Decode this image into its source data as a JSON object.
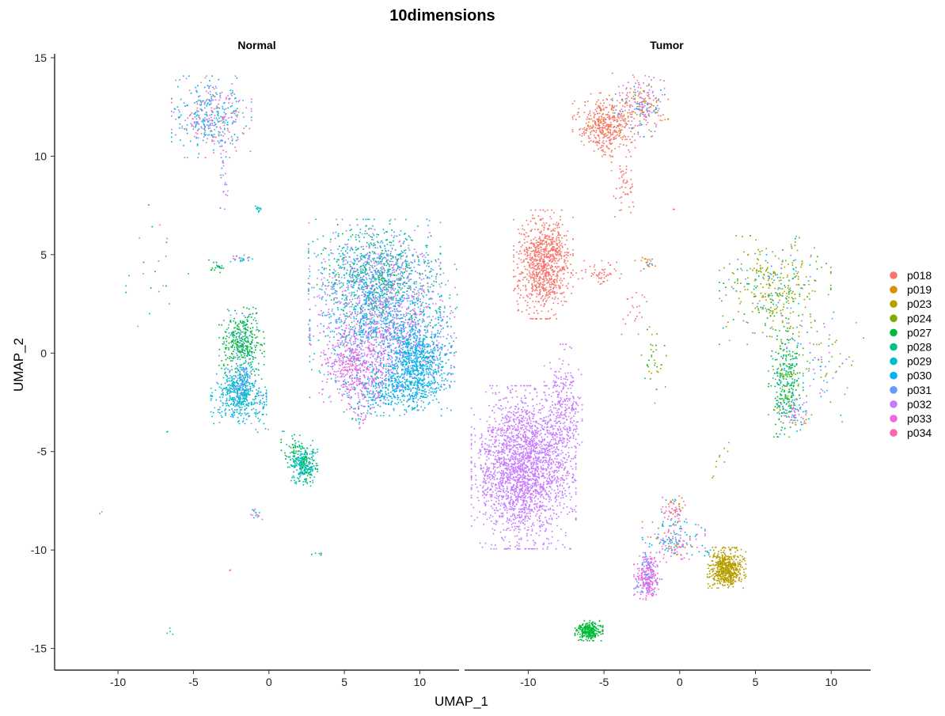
{
  "chart_data": {
    "type": "scatter",
    "title": "10dimensions",
    "xlabel": "UMAP_1",
    "ylabel": "UMAP_2",
    "xlim": [
      -14.2,
      12.6
    ],
    "ylim": [
      -16.1,
      15.2
    ],
    "x_ticks": [
      -10,
      -5,
      0,
      5,
      10
    ],
    "y_ticks": [
      15,
      10,
      5,
      0,
      -5,
      -10,
      -15
    ],
    "grid": false,
    "legend_position": "right",
    "legend": [
      {
        "name": "p018",
        "color": "#F8766D"
      },
      {
        "name": "p019",
        "color": "#DE8C00"
      },
      {
        "name": "p023",
        "color": "#B79F00"
      },
      {
        "name": "p024",
        "color": "#7CAE00"
      },
      {
        "name": "p027",
        "color": "#00BA38"
      },
      {
        "name": "p028",
        "color": "#00C08B"
      },
      {
        "name": "p029",
        "color": "#00BFC4"
      },
      {
        "name": "p030",
        "color": "#00B4F0"
      },
      {
        "name": "p031",
        "color": "#619CFF"
      },
      {
        "name": "p032",
        "color": "#C77CFF"
      },
      {
        "name": "p033",
        "color": "#F564E3"
      },
      {
        "name": "p034",
        "color": "#FF64B0"
      }
    ],
    "panels": [
      {
        "label": "Normal",
        "clusters": [
          {
            "cx": -3.8,
            "cy": 12.0,
            "sx": 1.15,
            "sy": 0.9,
            "n": 420,
            "mix": {
              "p018": 2,
              "p030": 3,
              "p031": 2,
              "p032": 2,
              "p029": 1,
              "p033": 1
            }
          },
          {
            "cx": -3.0,
            "cy": 9.0,
            "sx": 0.15,
            "sy": 0.9,
            "n": 25,
            "mix": {
              "p030": 1,
              "p032": 1,
              "p033": 1
            }
          },
          {
            "cx": -0.6,
            "cy": 7.3,
            "sx": 0.15,
            "sy": 0.1,
            "n": 12,
            "mix": {
              "p029": 1
            }
          },
          {
            "cx": -1.9,
            "cy": 4.8,
            "sx": 0.35,
            "sy": 0.12,
            "n": 25,
            "mix": {
              "p029": 1,
              "p030": 1,
              "p033": 1
            }
          },
          {
            "cx": -3.4,
            "cy": 4.4,
            "sx": 0.25,
            "sy": 0.15,
            "n": 20,
            "mix": {
              "p027": 2,
              "p029": 1
            }
          },
          {
            "cx": -7.4,
            "cy": 4.3,
            "sx": 0.9,
            "sy": 1.4,
            "n": 22,
            "mix": {
              "p027": 1,
              "p029": 1,
              "p033": 1,
              "p034": 1
            }
          },
          {
            "cx": -1.8,
            "cy": 0.6,
            "sx": 0.65,
            "sy": 0.75,
            "n": 380,
            "mix": {
              "p027": 5,
              "p028": 1,
              "p031": 1
            }
          },
          {
            "cx": -1.8,
            "cy": -1.5,
            "sx": 0.35,
            "sy": 0.6,
            "n": 160,
            "mix": {
              "p031": 3,
              "p029": 1
            }
          },
          {
            "cx": -2.0,
            "cy": -2.2,
            "sx": 0.8,
            "sy": 0.6,
            "n": 400,
            "mix": {
              "p029": 5,
              "p030": 1,
              "p031": 1
            }
          },
          {
            "cx": -0.4,
            "cy": -2.8,
            "sx": 0.4,
            "sy": 0.6,
            "n": 30,
            "mix": {
              "p029": 1,
              "p031": 1
            }
          },
          {
            "cx": 1.5,
            "cy": -4.9,
            "sx": 0.3,
            "sy": 0.5,
            "n": 50,
            "mix": {
              "p027": 2,
              "p029": 1
            }
          },
          {
            "cx": 2.3,
            "cy": -5.6,
            "sx": 0.4,
            "sy": 0.5,
            "n": 260,
            "mix": {
              "p027": 3,
              "p029": 3,
              "p030": 2,
              "p028": 1
            }
          },
          {
            "cx": 7.0,
            "cy": 3.8,
            "sx": 1.9,
            "sy": 1.3,
            "n": 1300,
            "mix": {
              "p027": 2,
              "p028": 2,
              "p030": 2,
              "p031": 2,
              "p032": 3,
              "p029": 1
            }
          },
          {
            "cx": 8.0,
            "cy": 1.2,
            "sx": 2.3,
            "sy": 1.5,
            "n": 1500,
            "mix": {
              "p032": 3,
              "p030": 3,
              "p031": 2,
              "p029": 2,
              "p033": 2
            }
          },
          {
            "cx": 6.0,
            "cy": -0.8,
            "sx": 1.2,
            "sy": 0.9,
            "n": 450,
            "mix": {
              "p033": 4,
              "p032": 2,
              "p034": 1
            }
          },
          {
            "cx": 10.0,
            "cy": -0.6,
            "sx": 0.9,
            "sy": 1.0,
            "n": 650,
            "mix": {
              "p030": 5,
              "p029": 1,
              "p031": 1
            }
          },
          {
            "cx": 8.2,
            "cy": -1.8,
            "sx": 1.4,
            "sy": 0.6,
            "n": 300,
            "mix": {
              "p030": 3,
              "p029": 2,
              "p031": 1
            }
          },
          {
            "cx": 6.0,
            "cy": -3.1,
            "sx": 0.3,
            "sy": 0.35,
            "n": 40,
            "mix": {
              "p032": 1,
              "p033": 1,
              "p029": 1
            }
          },
          {
            "cx": -0.9,
            "cy": -8.2,
            "sx": 0.2,
            "sy": 0.15,
            "n": 16,
            "mix": {
              "p033": 2,
              "p029": 1
            }
          },
          {
            "cx": 3.3,
            "cy": -10.2,
            "sx": 0.2,
            "sy": 0.05,
            "n": 6,
            "mix": {
              "p029": 1,
              "p027": 1
            }
          },
          {
            "cx": -6.6,
            "cy": -14.2,
            "sx": 0.2,
            "sy": 0.3,
            "n": 4,
            "mix": {
              "p029": 1
            }
          },
          {
            "cx": -11.1,
            "cy": -8.1,
            "sx": 0.05,
            "sy": 0.05,
            "n": 2,
            "mix": {
              "p031": 1
            }
          },
          {
            "cx": -2.5,
            "cy": -11.0,
            "sx": 0.05,
            "sy": 0.05,
            "n": 2,
            "mix": {
              "p033": 1
            }
          },
          {
            "cx": -6.7,
            "cy": -4.0,
            "sx": 0.05,
            "sy": 0.05,
            "n": 2,
            "mix": {
              "p029": 1
            }
          }
        ]
      },
      {
        "label": "Tumor",
        "clusters": [
          {
            "cx": -5.0,
            "cy": 11.6,
            "sx": 0.9,
            "sy": 0.7,
            "n": 420,
            "mix": {
              "p018": 6,
              "p019": 1
            }
          },
          {
            "cx": -2.6,
            "cy": 12.6,
            "sx": 0.8,
            "sy": 0.7,
            "n": 260,
            "mix": {
              "p032": 3,
              "p019": 2,
              "p033": 1,
              "p030": 1,
              "p018": 1
            }
          },
          {
            "cx": -3.7,
            "cy": 8.7,
            "sx": 0.35,
            "sy": 0.8,
            "n": 55,
            "mix": {
              "p018": 1
            }
          },
          {
            "cx": -9.0,
            "cy": 4.5,
            "sx": 0.85,
            "sy": 1.2,
            "n": 900,
            "mix": {
              "p018": 1
            }
          },
          {
            "cx": -5.3,
            "cy": 4.0,
            "sx": 0.8,
            "sy": 0.3,
            "n": 55,
            "mix": {
              "p018": 1
            }
          },
          {
            "cx": -2.3,
            "cy": 4.6,
            "sx": 0.3,
            "sy": 0.2,
            "n": 22,
            "mix": {
              "p018": 1,
              "p019": 1,
              "p030": 1
            }
          },
          {
            "cx": -3.0,
            "cy": 2.1,
            "sx": 0.4,
            "sy": 0.5,
            "n": 22,
            "mix": {
              "p018": 1,
              "p034": 1
            }
          },
          {
            "cx": -1.6,
            "cy": -0.5,
            "sx": 0.4,
            "sy": 1.0,
            "n": 35,
            "mix": {
              "p023": 1,
              "p024": 1,
              "p027": 1
            }
          },
          {
            "cx": 6.3,
            "cy": 3.2,
            "sx": 1.6,
            "sy": 1.2,
            "n": 380,
            "mix": {
              "p023": 3,
              "p024": 4,
              "p027": 2,
              "p030": 1,
              "p031": 1
            }
          },
          {
            "cx": 7.0,
            "cy": -1.5,
            "sx": 0.5,
            "sy": 1.2,
            "n": 300,
            "mix": {
              "p027": 5,
              "p024": 1,
              "p029": 1,
              "p030": 1
            }
          },
          {
            "cx": 7.6,
            "cy": -3.1,
            "sx": 0.5,
            "sy": 0.35,
            "n": 70,
            "mix": {
              "p030": 2,
              "p031": 2,
              "p033": 1,
              "p034": 1,
              "p019": 1
            }
          },
          {
            "cx": 9.6,
            "cy": -0.5,
            "sx": 1.1,
            "sy": 1.3,
            "n": 80,
            "mix": {
              "p024": 2,
              "p030": 1,
              "p031": 1,
              "p033": 1
            }
          },
          {
            "cx": -10.3,
            "cy": -5.8,
            "sx": 1.5,
            "sy": 1.8,
            "n": 2300,
            "mix": {
              "p032": 1
            }
          },
          {
            "cx": -7.7,
            "cy": -3.0,
            "sx": 0.55,
            "sy": 1.5,
            "n": 300,
            "mix": {
              "p032": 1
            }
          },
          {
            "cx": -12.6,
            "cy": -6.5,
            "sx": 0.3,
            "sy": 0.5,
            "n": 40,
            "mix": {
              "p032": 1
            }
          },
          {
            "cx": -0.5,
            "cy": -8.0,
            "sx": 0.45,
            "sy": 0.4,
            "n": 70,
            "mix": {
              "p034": 3,
              "p019": 2,
              "p030": 1,
              "p033": 1
            }
          },
          {
            "cx": -0.4,
            "cy": -9.6,
            "sx": 0.9,
            "sy": 0.45,
            "n": 170,
            "mix": {
              "p033": 3,
              "p030": 2,
              "p029": 1,
              "p019": 1
            }
          },
          {
            "cx": -2.1,
            "cy": -11.4,
            "sx": 0.4,
            "sy": 0.55,
            "n": 290,
            "mix": {
              "p033": 5,
              "p031": 2
            }
          },
          {
            "cx": 3.1,
            "cy": -10.9,
            "sx": 0.55,
            "sy": 0.45,
            "n": 550,
            "mix": {
              "p023": 1
            }
          },
          {
            "cx": -6.0,
            "cy": -14.1,
            "sx": 0.4,
            "sy": 0.22,
            "n": 260,
            "mix": {
              "p027": 1
            }
          },
          {
            "cx": 2.6,
            "cy": -5.3,
            "sx": 0.4,
            "sy": 0.5,
            "n": 10,
            "mix": {
              "p023": 1,
              "p024": 1
            }
          },
          {
            "cx": 1.9,
            "cy": -10.0,
            "sx": 0.2,
            "sy": 0.2,
            "n": 6,
            "mix": {
              "p030": 1,
              "p029": 1
            }
          },
          {
            "cx": -0.4,
            "cy": 7.3,
            "sx": 0.05,
            "sy": 0.05,
            "n": 2,
            "mix": {
              "p034": 1
            }
          }
        ]
      }
    ]
  }
}
